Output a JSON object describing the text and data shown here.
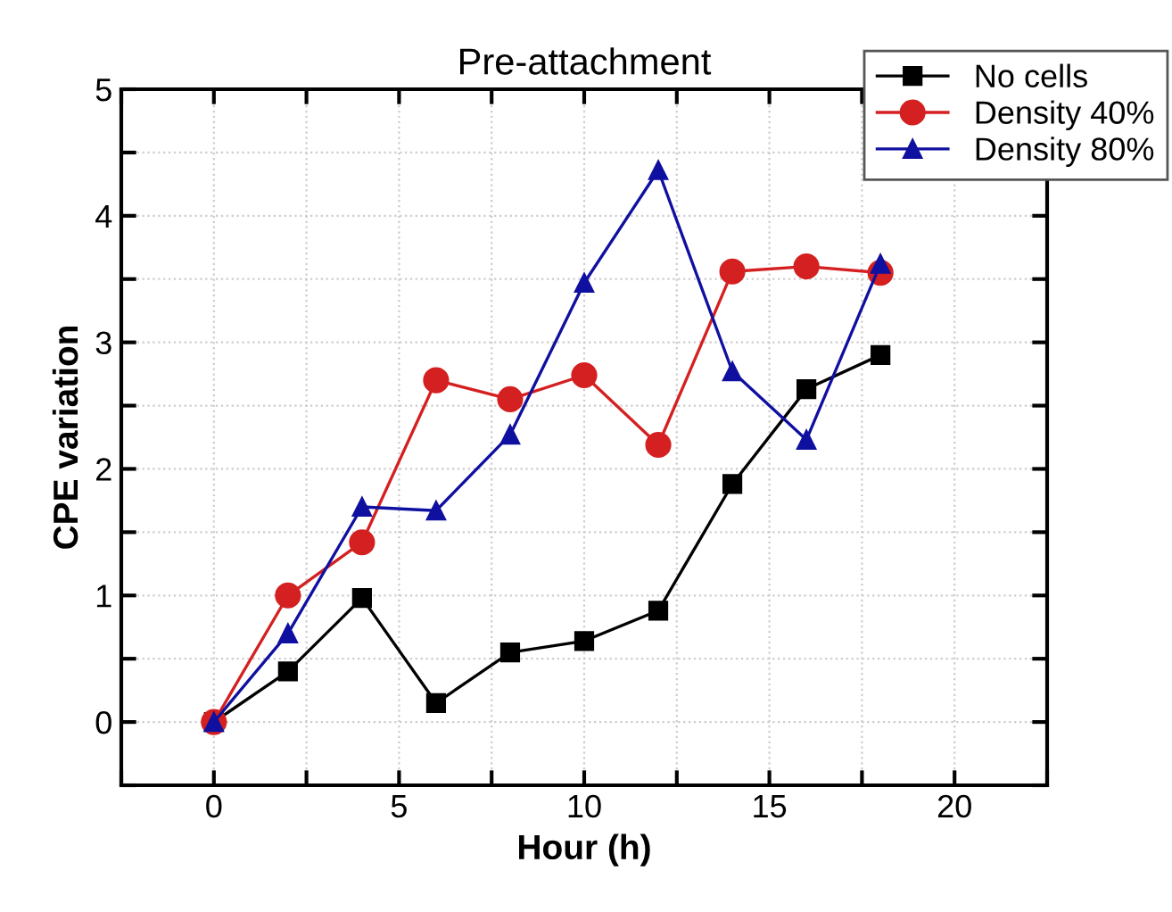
{
  "chart_data": {
    "type": "line",
    "title": "Pre-attachment",
    "xlabel": "Hour (h)",
    "ylabel": "CPE variation",
    "x": [
      0,
      2,
      4,
      6,
      8,
      10,
      12,
      14,
      16,
      18
    ],
    "series": [
      {
        "name": "No cells",
        "color": "#000000",
        "marker": "square",
        "values": [
          0,
          0.4,
          0.98,
          0.15,
          0.55,
          0.64,
          0.88,
          1.88,
          2.63,
          2.9
        ]
      },
      {
        "name": "Density 40%",
        "color": "#d42020",
        "marker": "circle",
        "values": [
          0,
          1.0,
          1.42,
          2.7,
          2.55,
          2.74,
          2.19,
          3.56,
          3.6,
          3.55
        ]
      },
      {
        "name": "Density 80%",
        "color": "#1010a0",
        "marker": "triangle",
        "values": [
          0,
          0.7,
          1.7,
          1.67,
          2.27,
          3.47,
          4.36,
          2.77,
          2.23,
          3.62
        ]
      }
    ],
    "xlim": [
      -2.5,
      22.5
    ],
    "ylim": [
      -0.5,
      5
    ],
    "xticks": [
      {
        "value": -2.5,
        "label": null
      },
      0,
      {
        "value": 2.5,
        "label": null
      },
      5,
      {
        "value": 7.5,
        "label": null
      },
      10,
      {
        "value": 12.5,
        "label": null
      },
      15,
      {
        "value": 17.5,
        "label": null
      },
      20,
      {
        "value": 22.5,
        "label": null
      }
    ],
    "yticks": [
      {
        "value": -0.5,
        "label": null
      },
      0,
      {
        "value": 0.5,
        "label": null
      },
      1,
      {
        "value": 1.5,
        "label": null
      },
      2,
      {
        "value": 2.5,
        "label": null
      },
      3,
      {
        "value": 3.5,
        "label": null
      },
      4,
      {
        "value": 4.5,
        "label": null
      },
      5
    ],
    "grid": true,
    "legend": "top right",
    "line_style": "solid"
  }
}
